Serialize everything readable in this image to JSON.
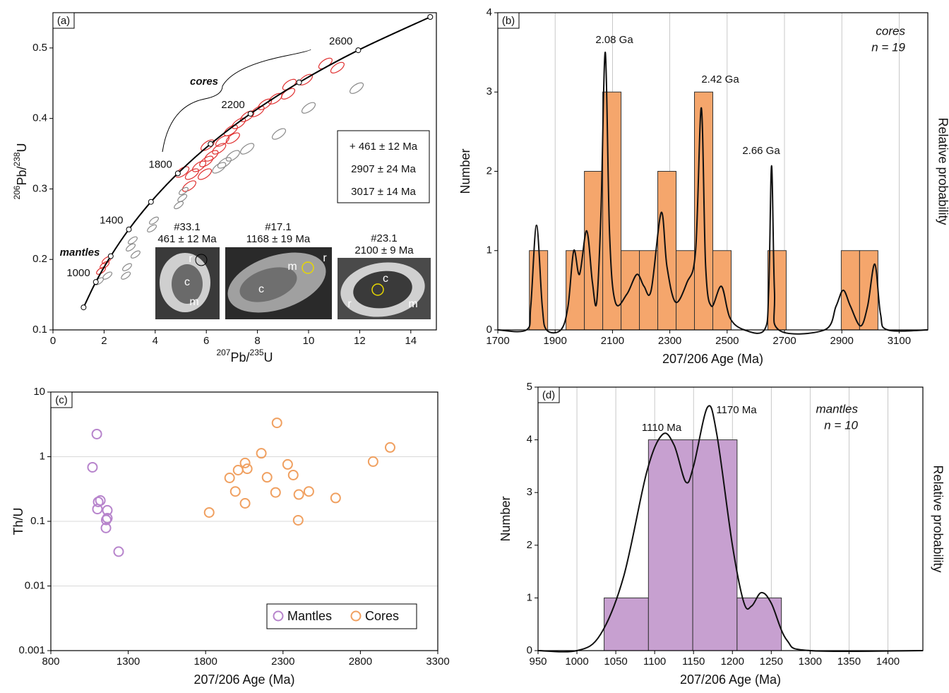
{
  "chart_data": [
    {
      "type": "concordia",
      "panel_label": "(a)",
      "xlabel_parts": [
        "207",
        "Pb/",
        "235",
        "U"
      ],
      "ylabel_parts": [
        "206",
        "Pb/",
        "238",
        "U"
      ],
      "xlim": [
        0,
        15
      ],
      "ylim": [
        0.1,
        0.55
      ],
      "xticks": [
        0,
        2,
        4,
        6,
        8,
        10,
        12,
        14
      ],
      "yticks": [
        0.1,
        0.2,
        0.3,
        0.4,
        0.5
      ],
      "concordia": [
        {
          "x": 1.199,
          "y": 0.132
        },
        {
          "x": 1.677,
          "y": 0.168,
          "label": 1000
        },
        {
          "x": 2.26,
          "y": 0.2046
        },
        {
          "x": 2.97,
          "y": 0.2426,
          "label": 1400
        },
        {
          "x": 3.834,
          "y": 0.2817
        },
        {
          "x": 4.886,
          "y": 0.3221,
          "label": 1800
        },
        {
          "x": 6.168,
          "y": 0.3638
        },
        {
          "x": 7.729,
          "y": 0.4067,
          "label": 2200
        },
        {
          "x": 9.63,
          "y": 0.4511
        },
        {
          "x": 11.944,
          "y": 0.4968,
          "label": 2600
        },
        {
          "x": 14.76,
          "y": 0.544
        }
      ],
      "ellipses": [
        {
          "color": "#e03030",
          "x": [
            10.66,
            9.89,
            9.25,
            9.2,
            11.13,
            8.7,
            8.29,
            8.0,
            7.6,
            7.27,
            6.96,
            7.04,
            6.63,
            6.5,
            6.2,
            6.05,
            6.0,
            5.72,
            5.44,
            5.33,
            5.06,
            5.94,
            2.02,
            1.88,
            2.1
          ],
          "y": [
            0.478,
            0.455,
            0.448,
            0.435,
            0.472,
            0.428,
            0.42,
            0.41,
            0.403,
            0.393,
            0.383,
            0.372,
            0.368,
            0.357,
            0.347,
            0.362,
            0.339,
            0.332,
            0.321,
            0.304,
            0.324,
            0.321,
            0.192,
            0.184,
            0.199
          ]
        },
        {
          "color": "#8a8a8a",
          "x": [
            11.88,
            10.0,
            8.84,
            7.6,
            7.04,
            6.71,
            6.5,
            5.11,
            5.06,
            4.92,
            3.95,
            3.87,
            3.12,
            3.04,
            3.23,
            2.9,
            2.85,
            1.8,
            2.13
          ],
          "y": [
            0.443,
            0.415,
            0.378,
            0.357,
            0.347,
            0.337,
            0.33,
            0.297,
            0.287,
            0.277,
            0.255,
            0.244,
            0.227,
            0.217,
            0.207,
            0.189,
            0.177,
            0.169,
            0.177
          ]
        }
      ],
      "cores_label": "cores",
      "mantles_label": "mantles",
      "box_labels": [
        "+ 461 ± 12 Ma",
        "2907 ± 24 Ma",
        "3017 ± 14 Ma"
      ],
      "insets": [
        {
          "title": "#33.1",
          "age": "461 ± 12 Ma",
          "labels": [
            "r",
            "c",
            "m"
          ]
        },
        {
          "title": "#17.1",
          "age": "1168 ± 19 Ma",
          "labels": [
            "m",
            "r",
            "c"
          ]
        },
        {
          "title": "#23.1",
          "age": "2100 ± 9 Ma",
          "labels": [
            "c",
            "r",
            "m"
          ]
        }
      ]
    },
    {
      "type": "histogram",
      "panel_label": "(b)",
      "xlabel": "207/206 Age (Ma)",
      "ylabel": "Number",
      "y2label": "Relative probability",
      "color": "#f5a66c",
      "xlim": [
        1700,
        3200
      ],
      "ylim": [
        0,
        4
      ],
      "xticks": [
        1700,
        1900,
        2100,
        2300,
        2500,
        2700,
        2900,
        3100
      ],
      "yticks": [
        0,
        1,
        2,
        3,
        4
      ],
      "grid": "x",
      "bins": [
        1810,
        1874,
        1938,
        2002,
        2066,
        2130,
        2194,
        2258,
        2322,
        2386,
        2450,
        2514,
        2578,
        2642,
        2706,
        2770,
        2834,
        2898,
        2962,
        3026
      ],
      "counts": [
        1,
        0,
        1,
        2,
        3,
        1,
        1,
        2,
        1,
        3,
        1,
        0,
        0,
        1,
        0,
        0,
        0,
        1,
        1
      ],
      "curve": {
        "x": [
          1700,
          1800,
          1815,
          1835,
          1855,
          1870,
          1920,
          1945,
          1965,
          1985,
          2010,
          2030,
          2045,
          2060,
          2075,
          2090,
          2110,
          2150,
          2185,
          2210,
          2235,
          2270,
          2290,
          2320,
          2360,
          2390,
          2410,
          2425,
          2445,
          2480,
          2510,
          2560,
          2630,
          2645,
          2655,
          2665,
          2680,
          2840,
          2880,
          2905,
          2930,
          2965,
          2990,
          3015,
          3035,
          3060,
          3200
        ],
        "y": [
          0,
          0,
          0.3,
          1.32,
          0.3,
          0,
          0,
          0.3,
          1.0,
          0.7,
          1.25,
          0.6,
          0.35,
          1.5,
          3.5,
          1.2,
          0.35,
          0.45,
          0.7,
          0.55,
          0.5,
          1.48,
          0.8,
          0.35,
          0.6,
          1.0,
          2.8,
          0.8,
          0.3,
          0.55,
          0.15,
          0,
          0,
          0.5,
          2.07,
          0.5,
          0,
          0,
          0.3,
          0.5,
          0.3,
          0.05,
          0.3,
          0.83,
          0.2,
          0,
          0
        ]
      },
      "peak_labels": [
        "2.08 Ga",
        "2.42 Ga",
        "2.66 Ga"
      ],
      "subtitle": [
        "cores",
        "n = 19"
      ]
    },
    {
      "type": "scatter",
      "panel_label": "(c)",
      "xlabel": "207/206 Age (Ma)",
      "ylabel": "Th/U",
      "log_y": true,
      "grid": "y",
      "xlim": [
        800,
        3300
      ],
      "ylim": [
        0.001,
        10
      ],
      "xticks": [
        800,
        1300,
        1800,
        2300,
        2800,
        3300
      ],
      "yticks": [
        0.001,
        0.01,
        0.1,
        1,
        10
      ],
      "series": [
        {
          "name": "Mantles",
          "color": "#b784cc",
          "x": [
            1097,
            1069,
            1106,
            1120,
            1101,
            1165,
            1165,
            1156,
            1158,
            1238
          ],
          "y": [
            2.24,
            0.686,
            0.2,
            0.21,
            0.155,
            0.148,
            0.112,
            0.079,
            0.105,
            0.034
          ]
        },
        {
          "name": "Cores",
          "color": "#f0a060",
          "x": [
            1823,
            1955,
            1992,
            2010,
            2055,
            2069,
            2055,
            2160,
            2197,
            2252,
            2261,
            2330,
            2366,
            2398,
            2402,
            2467,
            2640,
            2882,
            2992
          ],
          "y": [
            0.137,
            0.47,
            0.29,
            0.62,
            0.8,
            0.65,
            0.19,
            1.13,
            0.48,
            0.28,
            3.34,
            0.76,
            0.52,
            0.104,
            0.26,
            0.29,
            0.23,
            0.84,
            1.39
          ]
        }
      ]
    },
    {
      "type": "histogram",
      "panel_label": "(d)",
      "xlabel": "207/206 Age (Ma)",
      "ylabel": "Number",
      "y2label": "Relative probability",
      "color": "#c7a0d0",
      "xlim": [
        950,
        1445
      ],
      "ylim": [
        0,
        5
      ],
      "xticks": [
        950,
        1000,
        1050,
        1100,
        1150,
        1200,
        1250,
        1300,
        1350,
        1400
      ],
      "yticks": [
        0,
        1,
        2,
        3,
        4,
        5
      ],
      "grid": "x",
      "bins": [
        1035,
        1092,
        1149,
        1206,
        1263
      ],
      "counts": [
        1,
        4,
        4,
        1
      ],
      "curve": {
        "x": [
          950,
          1000,
          1030,
          1060,
          1090,
          1110,
          1125,
          1140,
          1150,
          1168,
          1180,
          1200,
          1215,
          1225,
          1237,
          1250,
          1270,
          1300,
          1445
        ],
        "y": [
          0,
          0,
          0.3,
          1.4,
          3.4,
          4.1,
          3.9,
          3.2,
          3.5,
          4.62,
          4.1,
          2.0,
          0.9,
          0.85,
          1.1,
          0.9,
          0.2,
          0,
          0
        ]
      },
      "peak_labels": [
        "1110 Ma",
        "1170 Ma"
      ],
      "subtitle": [
        "mantles",
        "n = 10"
      ]
    }
  ]
}
